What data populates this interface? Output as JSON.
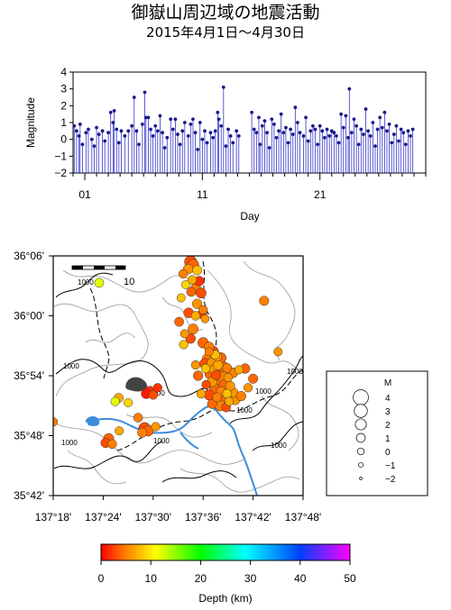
{
  "title": "御嶽山周辺域の地震活動",
  "subtitle": "2015年4月1日～4月30日",
  "chart_data": [
    {
      "type": "scatter",
      "xlabel": "Day",
      "ylabel": "Magnitude",
      "xlim": [
        0,
        30
      ],
      "ylim": [
        -2,
        4
      ],
      "xticks": [
        1,
        11,
        21
      ],
      "xtick_labels": [
        "01",
        "11",
        "21"
      ],
      "yticks": [
        -2,
        -1,
        0,
        1,
        2,
        3,
        4
      ],
      "ytick_labels": [
        "−2",
        "−1",
        "0",
        "1",
        "2",
        "3",
        "4"
      ],
      "points": [
        [
          0.1,
          0.8
        ],
        [
          0.3,
          0.5
        ],
        [
          0.5,
          0.2
        ],
        [
          0.6,
          0.9
        ],
        [
          0.8,
          -0.3
        ],
        [
          1.1,
          0.4
        ],
        [
          1.3,
          0.6
        ],
        [
          1.6,
          0.0
        ],
        [
          1.8,
          -0.4
        ],
        [
          2.0,
          0.7
        ],
        [
          2.2,
          0.3
        ],
        [
          2.5,
          0.5
        ],
        [
          2.7,
          -0.1
        ],
        [
          3.0,
          0.4
        ],
        [
          3.2,
          1.6
        ],
        [
          3.4,
          1.0
        ],
        [
          3.5,
          1.7
        ],
        [
          3.7,
          0.6
        ],
        [
          3.9,
          -0.2
        ],
        [
          4.1,
          0.5
        ],
        [
          4.4,
          0.2
        ],
        [
          4.7,
          0.5
        ],
        [
          5.0,
          0.8
        ],
        [
          5.2,
          2.5
        ],
        [
          5.4,
          0.5
        ],
        [
          5.6,
          -0.3
        ],
        [
          5.9,
          0.9
        ],
        [
          6.1,
          2.8
        ],
        [
          6.2,
          1.3
        ],
        [
          6.4,
          1.3
        ],
        [
          6.6,
          0.6
        ],
        [
          6.8,
          0.2
        ],
        [
          7.0,
          0.8
        ],
        [
          7.2,
          0.5
        ],
        [
          7.4,
          1.4
        ],
        [
          7.6,
          0.4
        ],
        [
          7.8,
          -0.5
        ],
        [
          8.0,
          0.1
        ],
        [
          8.3,
          1.2
        ],
        [
          8.5,
          0.6
        ],
        [
          8.7,
          1.2
        ],
        [
          8.9,
          0.3
        ],
        [
          9.1,
          -0.3
        ],
        [
          9.3,
          0.5
        ],
        [
          9.5,
          1.0
        ],
        [
          9.8,
          0.2
        ],
        [
          10.0,
          0.9
        ],
        [
          10.2,
          1.2
        ],
        [
          10.4,
          0.4
        ],
        [
          10.6,
          -0.6
        ],
        [
          10.8,
          1.0
        ],
        [
          11.0,
          0.0
        ],
        [
          11.2,
          0.5
        ],
        [
          11.4,
          -0.2
        ],
        [
          11.7,
          0.4
        ],
        [
          11.9,
          0.1
        ],
        [
          12.1,
          0.5
        ],
        [
          12.3,
          1.6
        ],
        [
          12.4,
          1.2
        ],
        [
          12.6,
          0.8
        ],
        [
          12.8,
          3.1
        ],
        [
          13.0,
          -0.4
        ],
        [
          13.2,
          0.6
        ],
        [
          13.4,
          0.2
        ],
        [
          13.6,
          -0.2
        ],
        [
          13.9,
          0.5
        ],
        [
          14.1,
          0.2
        ],
        [
          15.2,
          1.6
        ],
        [
          15.4,
          0.6
        ],
        [
          15.6,
          0.4
        ],
        [
          15.8,
          1.3
        ],
        [
          15.9,
          -0.3
        ],
        [
          16.1,
          0.8
        ],
        [
          16.3,
          1.1
        ],
        [
          16.5,
          0.4
        ],
        [
          16.7,
          -0.5
        ],
        [
          16.9,
          1.2
        ],
        [
          17.1,
          0.9
        ],
        [
          17.3,
          0.1
        ],
        [
          17.5,
          0.5
        ],
        [
          17.7,
          1.5
        ],
        [
          17.9,
          0.4
        ],
        [
          18.1,
          0.7
        ],
        [
          18.3,
          -0.2
        ],
        [
          18.5,
          0.6
        ],
        [
          18.7,
          0.3
        ],
        [
          18.9,
          1.9
        ],
        [
          19.1,
          1.0
        ],
        [
          19.3,
          0.4
        ],
        [
          19.6,
          0.2
        ],
        [
          19.8,
          1.3
        ],
        [
          20.0,
          -0.1
        ],
        [
          20.2,
          0.5
        ],
        [
          20.4,
          0.8
        ],
        [
          20.6,
          0.6
        ],
        [
          20.8,
          -0.3
        ],
        [
          21.0,
          0.8
        ],
        [
          21.2,
          0.5
        ],
        [
          21.4,
          0.1
        ],
        [
          21.6,
          0.6
        ],
        [
          21.8,
          0.2
        ],
        [
          22.0,
          0.5
        ],
        [
          22.2,
          0.4
        ],
        [
          22.4,
          0.2
        ],
        [
          22.6,
          -0.2
        ],
        [
          22.8,
          1.5
        ],
        [
          23.0,
          0.7
        ],
        [
          23.2,
          1.4
        ],
        [
          23.4,
          0.1
        ],
        [
          23.5,
          3.0
        ],
        [
          23.7,
          0.4
        ],
        [
          23.9,
          1.2
        ],
        [
          24.1,
          0.8
        ],
        [
          24.3,
          -0.3
        ],
        [
          24.5,
          0.6
        ],
        [
          24.7,
          0.3
        ],
        [
          24.9,
          1.8
        ],
        [
          25.1,
          0.5
        ],
        [
          25.3,
          0.2
        ],
        [
          25.5,
          1.0
        ],
        [
          25.7,
          -0.4
        ],
        [
          25.9,
          0.6
        ],
        [
          26.1,
          1.3
        ],
        [
          26.3,
          0.7
        ],
        [
          26.5,
          1.6
        ],
        [
          26.7,
          0.5
        ],
        [
          26.9,
          0.9
        ],
        [
          27.1,
          -0.2
        ],
        [
          27.3,
          0.3
        ],
        [
          27.5,
          0.8
        ],
        [
          27.7,
          -0.1
        ],
        [
          27.9,
          0.6
        ],
        [
          28.1,
          0.4
        ],
        [
          28.3,
          -0.3
        ],
        [
          28.5,
          0.5
        ],
        [
          28.7,
          0.2
        ],
        [
          28.9,
          0.6
        ]
      ]
    },
    {
      "type": "scatter",
      "xlim": [
        137.3,
        137.8
      ],
      "ylim": [
        35.7,
        36.1
      ],
      "xticks": [
        137.3,
        137.4,
        137.5,
        137.6,
        137.7,
        137.8
      ],
      "xtick_labels": [
        "137°18'",
        "137°24'",
        "137°30'",
        "137°36'",
        "137°42'",
        "137°48'"
      ],
      "yticks": [
        35.7,
        35.8,
        35.9,
        36.0,
        36.1
      ],
      "ytick_labels": [
        "35°42'",
        "35°48'",
        "35°54'",
        "36°00'",
        "36°06'"
      ],
      "scale_label": "10",
      "contour_labels": [
        "1000",
        "1000",
        "1000",
        "1000",
        "1000",
        "1000",
        "1000",
        "1000",
        "1000"
      ],
      "points": [
        [
          137.575,
          36.09,
          2.0,
          3
        ],
        [
          137.58,
          36.085,
          1.6,
          4
        ],
        [
          137.57,
          36.078,
          1.0,
          6
        ],
        [
          137.588,
          36.076,
          0.8,
          8
        ],
        [
          137.56,
          36.07,
          0.5,
          5
        ],
        [
          137.578,
          36.06,
          0.6,
          7
        ],
        [
          137.592,
          36.058,
          0.9,
          2
        ],
        [
          137.565,
          36.052,
          0.3,
          9
        ],
        [
          137.585,
          36.045,
          1.2,
          5
        ],
        [
          137.576,
          36.04,
          0.7,
          4
        ],
        [
          137.596,
          36.038,
          1.1,
          3
        ],
        [
          137.556,
          36.03,
          0.4,
          8
        ],
        [
          137.588,
          36.02,
          0.9,
          6
        ],
        [
          137.6,
          36.01,
          0.5,
          5
        ],
        [
          137.571,
          36.005,
          1.0,
          3
        ],
        [
          137.585,
          36.0,
          0.6,
          7
        ],
        [
          137.598,
          36.003,
          0.8,
          2
        ],
        [
          137.604,
          35.995,
          0.3,
          6
        ],
        [
          137.552,
          35.99,
          0.7,
          4
        ],
        [
          137.58,
          35.978,
          1.1,
          5
        ],
        [
          137.563,
          35.97,
          0.4,
          6
        ],
        [
          137.575,
          35.962,
          0.9,
          3
        ],
        [
          137.561,
          35.952,
          0.5,
          8
        ],
        [
          137.6,
          35.955,
          1.3,
          4
        ],
        [
          137.612,
          35.948,
          1.0,
          5
        ],
        [
          137.62,
          35.94,
          1.5,
          3
        ],
        [
          137.628,
          35.932,
          0.8,
          6
        ],
        [
          137.636,
          35.93,
          1.1,
          4
        ],
        [
          137.61,
          35.928,
          1.8,
          5
        ],
        [
          137.618,
          35.921,
          1.2,
          6
        ],
        [
          137.63,
          35.918,
          0.9,
          7
        ],
        [
          137.64,
          35.915,
          1.4,
          4
        ],
        [
          137.648,
          35.913,
          0.7,
          5
        ],
        [
          137.622,
          35.91,
          1.0,
          6
        ],
        [
          137.605,
          35.912,
          0.6,
          8
        ],
        [
          137.614,
          35.903,
          1.3,
          4
        ],
        [
          137.626,
          35.901,
          0.8,
          3
        ],
        [
          137.638,
          35.899,
          1.6,
          5
        ],
        [
          137.65,
          35.897,
          0.5,
          6
        ],
        [
          137.66,
          35.905,
          1.0,
          5
        ],
        [
          137.672,
          35.91,
          0.4,
          7
        ],
        [
          137.684,
          35.912,
          0.9,
          4
        ],
        [
          137.618,
          35.89,
          1.1,
          6
        ],
        [
          137.63,
          35.888,
          1.7,
          5
        ],
        [
          137.642,
          35.885,
          1.2,
          4
        ],
        [
          137.654,
          35.883,
          0.8,
          6
        ],
        [
          137.606,
          35.885,
          0.5,
          3
        ],
        [
          137.624,
          35.878,
          1.4,
          4
        ],
        [
          137.636,
          35.874,
          0.9,
          5
        ],
        [
          137.648,
          35.87,
          0.6,
          8
        ],
        [
          137.66,
          35.872,
          1.0,
          6
        ],
        [
          137.612,
          35.868,
          1.2,
          3
        ],
        [
          137.628,
          35.864,
          0.7,
          5
        ],
        [
          137.64,
          35.86,
          1.5,
          4
        ],
        [
          137.652,
          35.857,
          0.4,
          7
        ],
        [
          137.664,
          35.86,
          1.1,
          6
        ],
        [
          137.618,
          35.853,
          0.8,
          4
        ],
        [
          137.634,
          35.85,
          1.3,
          5
        ],
        [
          137.646,
          35.847,
          0.6,
          3
        ],
        [
          137.676,
          35.866,
          0.9,
          5
        ],
        [
          137.69,
          35.88,
          0.5,
          6
        ],
        [
          137.7,
          35.895,
          0.8,
          4
        ],
        [
          137.596,
          35.87,
          0.6,
          7
        ],
        [
          137.59,
          35.9,
          0.9,
          4
        ],
        [
          137.585,
          35.918,
          0.5,
          6
        ],
        [
          137.604,
          35.92,
          1.4,
          3
        ],
        [
          137.624,
          35.935,
          0.6,
          8
        ],
        [
          137.612,
          35.94,
          0.4,
          5
        ],
        [
          137.493,
          35.873,
          1.6,
          2
        ],
        [
          137.486,
          35.87,
          1.0,
          1
        ],
        [
          137.5,
          35.868,
          0.6,
          3
        ],
        [
          137.509,
          35.88,
          0.5,
          2
        ],
        [
          137.431,
          35.863,
          0.7,
          7
        ],
        [
          137.424,
          35.857,
          0.5,
          12
        ],
        [
          137.45,
          35.855,
          0.4,
          9
        ],
        [
          137.47,
          35.83,
          0.6,
          5
        ],
        [
          137.483,
          35.812,
          1.9,
          3
        ],
        [
          137.49,
          35.808,
          1.3,
          4
        ],
        [
          137.478,
          35.805,
          0.8,
          5
        ],
        [
          137.505,
          35.815,
          0.5,
          6
        ],
        [
          137.411,
          35.795,
          1.2,
          4
        ],
        [
          137.405,
          35.788,
          0.9,
          3
        ],
        [
          137.418,
          35.786,
          0.6,
          5
        ],
        [
          137.432,
          35.808,
          0.4,
          7
        ],
        [
          137.392,
          36.055,
          0.7,
          12
        ],
        [
          137.722,
          36.025,
          0.8,
          5
        ],
        [
          137.75,
          35.94,
          0.4,
          6
        ],
        [
          137.3,
          35.823,
          0.5,
          5
        ]
      ]
    },
    {
      "type": "legend",
      "title": "M",
      "labels": [
        "4",
        "3",
        "2",
        "1",
        "0",
        "−1",
        "−2"
      ],
      "values": [
        4,
        3,
        2,
        1,
        0,
        -1,
        -2
      ]
    },
    {
      "type": "colorbar",
      "xlabel": "Depth (km)",
      "xlim": [
        0,
        50
      ],
      "ticks": [
        0,
        10,
        20,
        30,
        40,
        50
      ],
      "tick_labels": [
        "0",
        "10",
        "20",
        "30",
        "40",
        "50"
      ],
      "colors": [
        "#ff0000",
        "#ff8000",
        "#ffff00",
        "#00ff00",
        "#00ffff",
        "#0040ff",
        "#ff00ff"
      ]
    }
  ]
}
